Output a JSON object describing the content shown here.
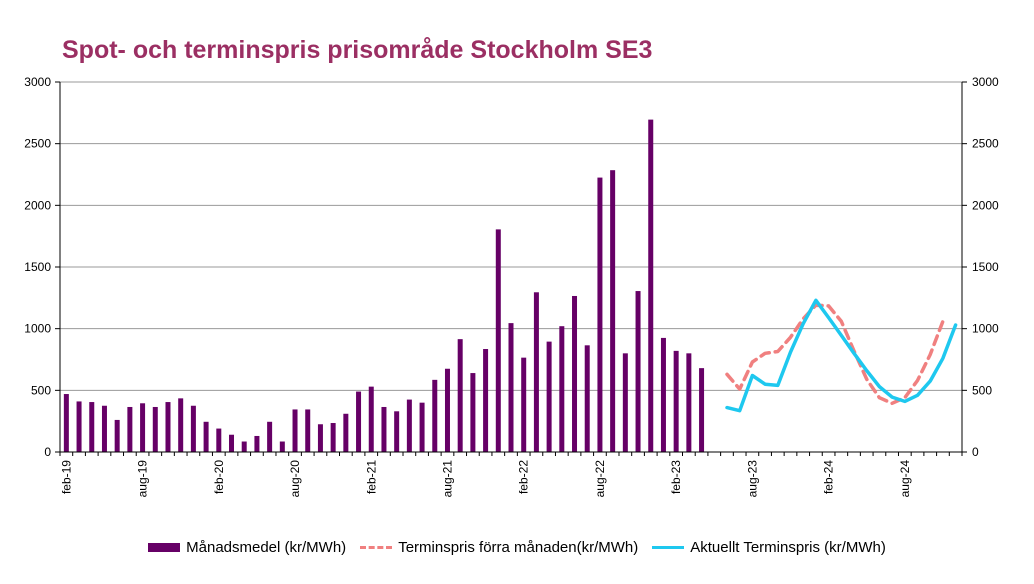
{
  "chart_data": {
    "type": "bar+line",
    "title": "Spot- och terminspris prisområde Stockholm SE3",
    "ylim": [
      0,
      3000
    ],
    "y_ticks": [
      "0",
      "500",
      "1000",
      "1500",
      "2000",
      "2500",
      "3000"
    ],
    "y_ticks_right": [
      "0",
      "500",
      "1000",
      "1500",
      "2000",
      "2500",
      "3000"
    ],
    "x_tick_labels": [
      "feb-19",
      "aug-19",
      "feb-20",
      "aug-20",
      "feb-21",
      "aug-21",
      "feb-22",
      "aug-22",
      "feb-23",
      "aug-23",
      "feb-24",
      "aug-24"
    ],
    "grid": true,
    "legend_position": "bottom",
    "colors": {
      "bars": "#660066",
      "forward_prev": "#f08080",
      "forward_current": "#1ec8ef",
      "title": "#9b2f63"
    },
    "months": [
      "feb-19",
      "mar-19",
      "apr-19",
      "maj-19",
      "jun-19",
      "jul-19",
      "aug-19",
      "sep-19",
      "okt-19",
      "nov-19",
      "dec-19",
      "jan-20",
      "feb-20",
      "mar-20",
      "apr-20",
      "maj-20",
      "jun-20",
      "jul-20",
      "aug-20",
      "sep-20",
      "okt-20",
      "nov-20",
      "dec-20",
      "jan-21",
      "feb-21",
      "mar-21",
      "apr-21",
      "maj-21",
      "jun-21",
      "jul-21",
      "aug-21",
      "sep-21",
      "okt-21",
      "nov-21",
      "dec-21",
      "jan-22",
      "feb-22",
      "mar-22",
      "apr-22",
      "maj-22",
      "jun-22",
      "jul-22",
      "aug-22",
      "sep-22",
      "okt-22",
      "nov-22",
      "dec-22",
      "jan-23",
      "feb-23",
      "mar-23",
      "apr-23",
      "maj-23",
      "jun-23",
      "jul-23",
      "aug-23",
      "sep-23",
      "okt-23",
      "nov-23",
      "dec-23",
      "jan-24",
      "feb-24",
      "mar-24",
      "apr-24",
      "maj-24",
      "jun-24",
      "jul-24",
      "aug-24",
      "sep-24",
      "okt-24",
      "nov-24",
      "dec-24"
    ],
    "series": [
      {
        "name": "Månadsmedel (kr/MWh)",
        "type": "bar",
        "values": [
          470,
          410,
          405,
          375,
          260,
          365,
          395,
          365,
          405,
          435,
          375,
          245,
          190,
          140,
          85,
          130,
          245,
          85,
          345,
          345,
          225,
          235,
          310,
          490,
          530,
          365,
          330,
          425,
          400,
          585,
          675,
          915,
          640,
          835,
          1805,
          1045,
          765,
          1295,
          895,
          1020,
          1265,
          865,
          2225,
          2285,
          800,
          1305,
          2695,
          925,
          820,
          800,
          680
        ]
      },
      {
        "name": "Terminspris förra månaden(kr/MWh)",
        "type": "line",
        "dashed": true,
        "start_month": "jun-23",
        "values": [
          630,
          510,
          730,
          800,
          815,
          930,
          1080,
          1190,
          1185,
          1060,
          820,
          590,
          440,
          395,
          440,
          580,
          790,
          1060
        ]
      },
      {
        "name": "Aktuellt Terminspris (kr/MWh)",
        "type": "line",
        "start_month": "jun-23",
        "values": [
          360,
          335,
          620,
          550,
          540,
          810,
          1040,
          1230,
          1090,
          945,
          800,
          660,
          530,
          445,
          410,
          460,
          575,
          760,
          1030
        ]
      }
    ]
  }
}
